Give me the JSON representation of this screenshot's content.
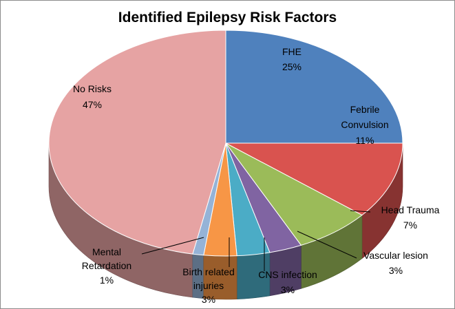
{
  "chart_data": {
    "type": "pie",
    "title": "Identified Epilepsy Risk Factors",
    "style": "3d",
    "slices": [
      {
        "label": "FHE",
        "value": 25,
        "display": "25%",
        "color": "#4f81bd"
      },
      {
        "label": "Febrile Convulsion",
        "value": 11,
        "display": "11%",
        "color": "#d9534f"
      },
      {
        "label": "Head Trauma",
        "value": 7,
        "display": "7%",
        "color": "#9bbb59"
      },
      {
        "label": "Vascular lesion",
        "value": 3,
        "display": "3%",
        "color": "#8064a2"
      },
      {
        "label": "CNS infection",
        "value": 3,
        "display": "3%",
        "color": "#4bacc6"
      },
      {
        "label": "Birth related injuries",
        "value": 3,
        "display": "3%",
        "color": "#f79646"
      },
      {
        "label": "Mental Retardation",
        "value": 1,
        "display": "1%",
        "color": "#95b3d7"
      },
      {
        "label": "No Risks",
        "value": 47,
        "display": "47%",
        "color": "#e6a3a3"
      }
    ]
  }
}
